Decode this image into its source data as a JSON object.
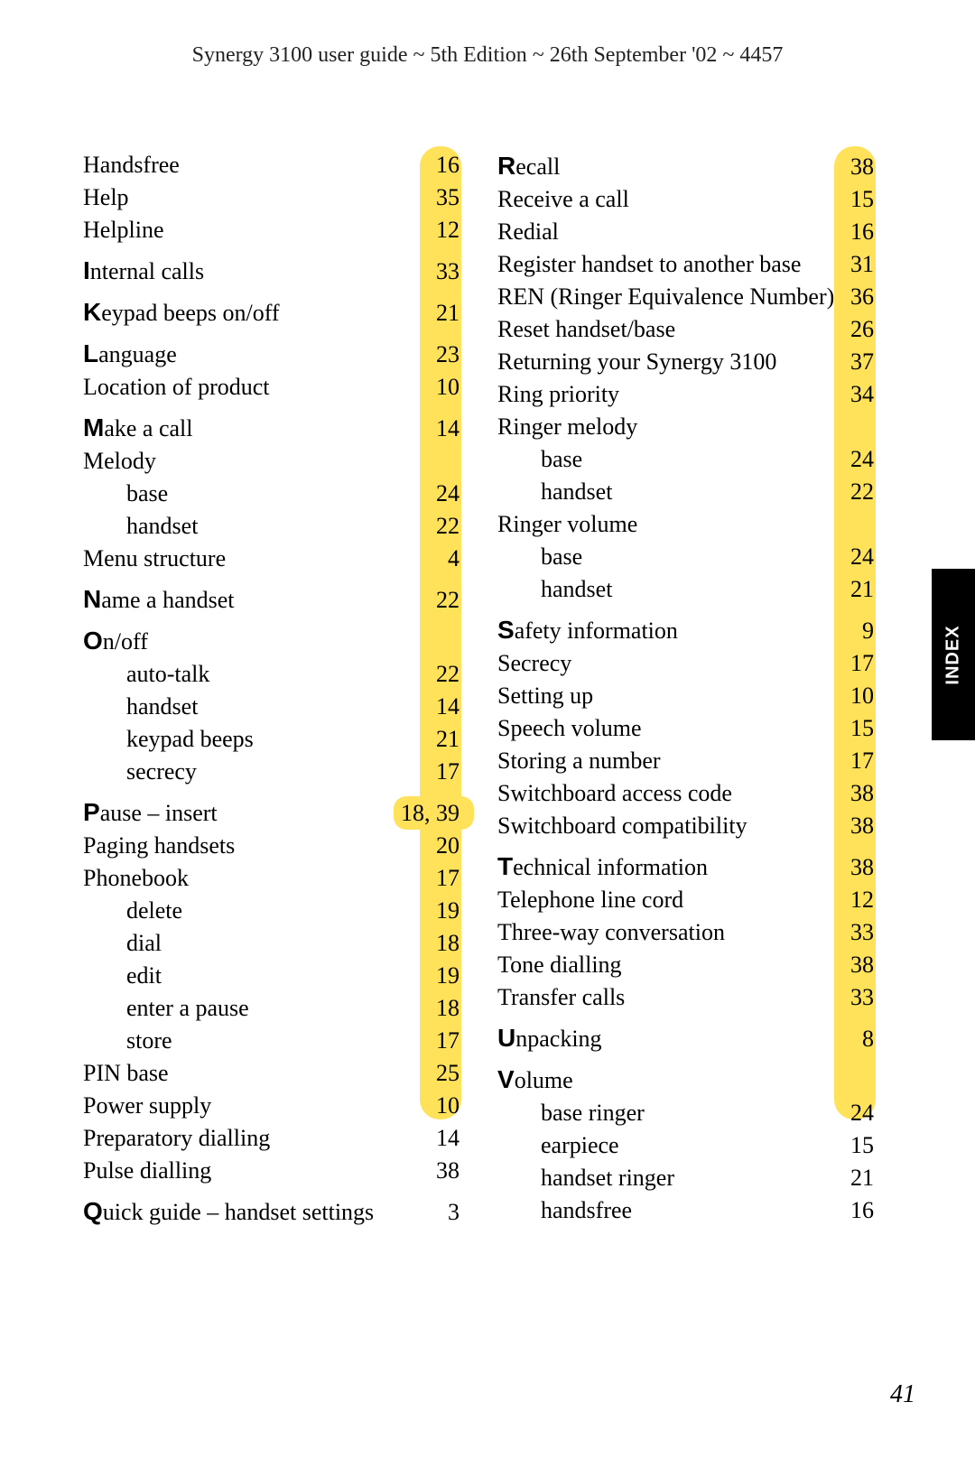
{
  "header": "Synergy 3100 user guide ~ 5th Edition ~ 26th September '02 ~ 4457",
  "side_tab": "INDEX",
  "page_number": "41",
  "highlight_color": "#ffe15a",
  "columns": {
    "left": {
      "strip_height": 1078
    },
    "right": {
      "strip_height": 1078
    }
  },
  "left": [
    {
      "term": "Handsfree",
      "page": "16"
    },
    {
      "term": "Help",
      "page": "35"
    },
    {
      "term": "Helpline",
      "page": "12"
    },
    {
      "big": "I",
      "term": "nternal calls",
      "page": "33",
      "gap": true
    },
    {
      "big": "K",
      "term": "eypad beeps on/off",
      "page": "21",
      "gap": true
    },
    {
      "big": "L",
      "term": "anguage",
      "page": "23",
      "gap": true
    },
    {
      "term": "Location of product",
      "page": "10"
    },
    {
      "big": "M",
      "term": "ake a call",
      "page": "14",
      "gap": true
    },
    {
      "term": "Melody",
      "page": ""
    },
    {
      "term": "base",
      "page": "24",
      "indent": 1
    },
    {
      "term": "handset",
      "page": "22",
      "indent": 1
    },
    {
      "term": "Menu structure",
      "page": "4"
    },
    {
      "big": "N",
      "term": "ame a handset",
      "page": "22",
      "gap": true
    },
    {
      "big": "O",
      "term": "n/off",
      "page": "",
      "gap": true
    },
    {
      "term": "auto-talk",
      "page": "22",
      "indent": 1
    },
    {
      "term": "handset",
      "page": "14",
      "indent": 1
    },
    {
      "term": "keypad beeps",
      "page": "21",
      "indent": 1
    },
    {
      "term": "secrecy",
      "page": "17",
      "indent": 1
    },
    {
      "big": "P",
      "term": "ause – insert",
      "page": "18, 39",
      "gap": true,
      "wide_hi": true
    },
    {
      "term": "Paging handsets",
      "page": "20"
    },
    {
      "term": "Phonebook",
      "page": "17"
    },
    {
      "term": "delete",
      "page": "19",
      "indent": 1
    },
    {
      "term": "dial",
      "page": "18",
      "indent": 1
    },
    {
      "term": "edit",
      "page": "19",
      "indent": 1
    },
    {
      "term": "enter a pause",
      "page": "18",
      "indent": 1
    },
    {
      "term": "store",
      "page": "17",
      "indent": 1
    },
    {
      "term": "PIN base",
      "page": "25"
    },
    {
      "term": "Power supply",
      "page": "10"
    },
    {
      "term": "Preparatory dialling",
      "page": "14"
    },
    {
      "term": "Pulse dialling",
      "page": "38"
    },
    {
      "big": "Q",
      "term": "uick guide – handset settings",
      "page": "3",
      "gap": true
    }
  ],
  "right": [
    {
      "big": "R",
      "term": "ecall",
      "page": "38"
    },
    {
      "term": "Receive a call",
      "page": "15"
    },
    {
      "term": "Redial",
      "page": "16"
    },
    {
      "term": "Register handset to another base",
      "page": "31"
    },
    {
      "term": "REN (Ringer Equivalence Number)",
      "page": "36"
    },
    {
      "term": "Reset handset/base",
      "page": "26"
    },
    {
      "term": "Returning your Synergy 3100",
      "page": "37"
    },
    {
      "term": "Ring priority",
      "page": "34"
    },
    {
      "term": "Ringer melody",
      "page": ""
    },
    {
      "term": "base",
      "page": "24",
      "indent": 1
    },
    {
      "term": "handset",
      "page": "22",
      "indent": 1
    },
    {
      "term": "Ringer volume",
      "page": ""
    },
    {
      "term": "base",
      "page": "24",
      "indent": 1
    },
    {
      "term": "handset",
      "page": "21",
      "indent": 1
    },
    {
      "big": "S",
      "term": "afety information",
      "page": "9",
      "gap": true
    },
    {
      "term": "Secrecy",
      "page": "17"
    },
    {
      "term": "Setting up",
      "page": "10"
    },
    {
      "term": "Speech volume",
      "page": "15"
    },
    {
      "term": "Storing a number",
      "page": "17"
    },
    {
      "term": "Switchboard access code",
      "page": "38"
    },
    {
      "term": "Switchboard compatibility",
      "page": "38"
    },
    {
      "big": "T",
      "term": "echnical information",
      "page": "38",
      "gap": true
    },
    {
      "term": "Telephone line cord",
      "page": "12"
    },
    {
      "term": "Three-way conversation",
      "page": "33"
    },
    {
      "term": "Tone dialling",
      "page": "38"
    },
    {
      "term": "Transfer calls",
      "page": "33"
    },
    {
      "big": "U",
      "term": "npacking",
      "page": "8",
      "gap": true
    },
    {
      "big": "V",
      "term": "olume",
      "page": "",
      "gap": true
    },
    {
      "term": "base ringer",
      "page": "24",
      "indent": 1
    },
    {
      "term": "earpiece",
      "page": "15",
      "indent": 1
    },
    {
      "term": "handset ringer",
      "page": "21",
      "indent": 1
    },
    {
      "term": "handsfree",
      "page": "16",
      "indent": 1
    }
  ]
}
